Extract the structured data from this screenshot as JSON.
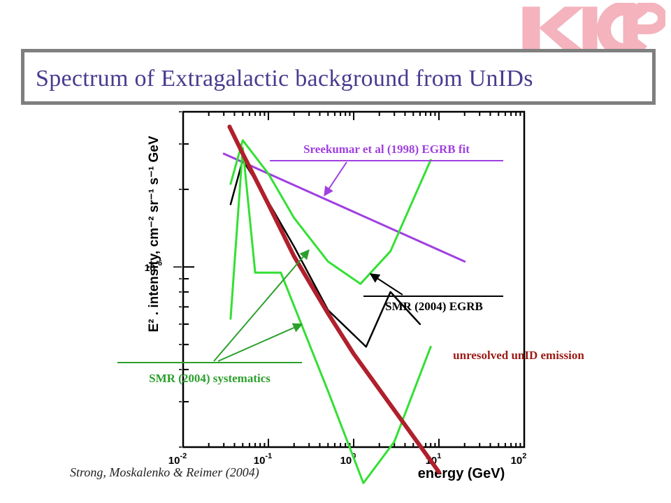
{
  "title": "Spectrum of Extragalactic background from UnIDs",
  "logo_text": "KICP",
  "caption": "Strong, Moskalenko & Reimer (2004)",
  "colors": {
    "title": "#4a3a8f",
    "title_border": "#7f7f7f",
    "logo": "#f4b3bd",
    "egrb_fit": "#a040e0",
    "systematics": "#33e033",
    "egrb": "#000000",
    "unid": "#b0202c",
    "annotation_unid": "#9c1a14",
    "annotation_green": "#2ca02c"
  },
  "chart_data": {
    "type": "line",
    "xlabel": "energy (GeV)",
    "ylabel": "E² . intensity, cm⁻² sr⁻¹ s⁻¹ GeV",
    "x_scale": "log",
    "y_scale": "log",
    "xlim": [
      0.01,
      100
    ],
    "ylim": [
      2e-07,
      4e-06
    ],
    "grid": false,
    "x_ticks": [
      {
        "value": 0.01,
        "base": "10",
        "exp": "-2"
      },
      {
        "value": 0.1,
        "base": "10",
        "exp": "-1"
      },
      {
        "value": 1,
        "base": "10",
        "exp": "0"
      },
      {
        "value": 10,
        "base": "10",
        "exp": "1"
      },
      {
        "value": 100,
        "base": "10",
        "exp": "2"
      }
    ],
    "y_ticks": [
      {
        "value": 1e-06,
        "base": "10",
        "exp": "-6"
      }
    ],
    "series": [
      {
        "name": "Sreekumar et al (1998) EGRB fit",
        "color_key": "egrb_fit",
        "x": [
          0.03,
          20
        ],
        "y": [
          2.75e-06,
          1.05e-06
        ]
      },
      {
        "name": "SMR (2004) EGRB",
        "color_key": "egrb",
        "x": [
          0.036,
          0.05,
          0.09,
          0.2,
          0.5,
          1.4,
          2.7,
          6.0
        ],
        "y": [
          1.75e-06,
          2.6e-06,
          1.9e-06,
          1.2e-06,
          6.8e-07,
          4.9e-07,
          8e-07,
          6e-07
        ]
      },
      {
        "name": "systematics upper",
        "color_key": "systematics",
        "x": [
          0.036,
          0.05,
          0.1,
          0.2,
          0.5,
          1.2,
          2.7,
          8.0
        ],
        "y": [
          2.1e-06,
          3.1e-06,
          2.3e-06,
          1.55e-06,
          1.05e-06,
          8.6e-07,
          1.15e-06,
          2.6e-06
        ]
      },
      {
        "name": "systematics lower",
        "color_key": "systematics",
        "x": [
          0.036,
          0.05,
          0.07,
          0.14,
          0.5,
          1.3,
          3.0,
          8.0
        ],
        "y": [
          6.3e-07,
          2.9e-06,
          9.5e-07,
          9.5e-07,
          3.3e-07,
          1.45e-07,
          2.1e-07,
          4.9e-07
        ]
      },
      {
        "name": "unresolved unID emission",
        "color_key": "unid",
        "x": [
          0.035,
          0.05,
          0.1,
          0.2,
          0.5,
          1,
          2,
          5,
          10
        ],
        "y": [
          3.5e-06,
          2.75e-06,
          1.75e-06,
          1.1e-06,
          6.6e-07,
          4.6e-07,
          3.35e-07,
          2.2e-07,
          1.6e-07
        ]
      }
    ],
    "annotations": [
      {
        "text": "Sreekumar et al (1998) EGRB fit",
        "color_key": "egrb_fit"
      },
      {
        "text": "SMR (2004) EGRB",
        "color_key": "egrb"
      },
      {
        "text": "unresolved unID emission",
        "color_key": "annotation_unid"
      },
      {
        "text": "SMR (2004) systematics",
        "color_key": "annotation_green"
      }
    ]
  }
}
